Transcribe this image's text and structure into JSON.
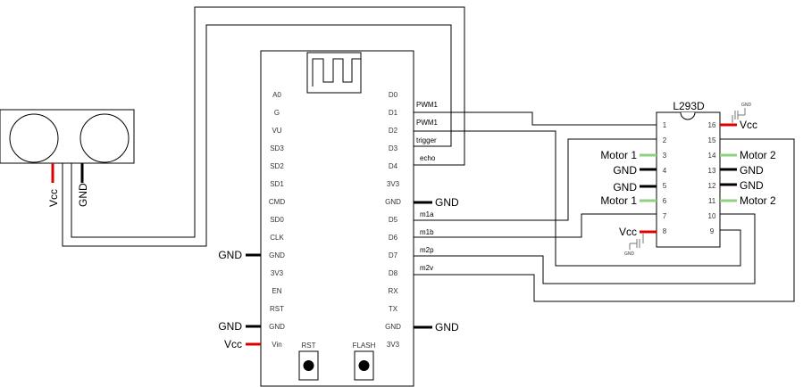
{
  "mcu": {
    "left_pins": [
      "A0",
      "G",
      "VU",
      "SD3",
      "SD2",
      "SD1",
      "CMD",
      "SD0",
      "CLK",
      "GND",
      "3V3",
      "EN",
      "RST",
      "GND",
      "Vin"
    ],
    "right_pins": [
      "D0",
      "D1",
      "D2",
      "D3",
      "D4",
      "3V3",
      "GND",
      "D5",
      "D6",
      "D7",
      "D8",
      "RX",
      "TX",
      "GND",
      "3V3"
    ],
    "buttons": {
      "rst": "RST",
      "flash": "FLASH"
    },
    "left_ext": {
      "gnd_clk": "GND",
      "gnd_lower": "GND",
      "vcc": "Vcc"
    },
    "right_ext": {
      "gnd_upper": "GND",
      "gnd_lower": "GND"
    }
  },
  "signals": {
    "d1": "PWM1",
    "d2": "PWM1",
    "d3": "trigger",
    "d4": "echo",
    "d5": "m1a",
    "d6": "m1b",
    "d7": "m2p",
    "d8": "m2v"
  },
  "sensor": {
    "vcc": "Vcc",
    "gnd": "GND"
  },
  "driver": {
    "title": "L293D",
    "left_nums": [
      "1",
      "2",
      "3",
      "4",
      "5",
      "6",
      "7",
      "8"
    ],
    "right_nums": [
      "16",
      "15",
      "14",
      "13",
      "12",
      "11",
      "10",
      "9"
    ],
    "left_labels": {
      "p3": "Motor 1",
      "p4": "GND",
      "p5": "GND",
      "p6": "Motor 1",
      "p8": "Vcc"
    },
    "right_labels": {
      "p16": "Vcc",
      "p14": "Motor 2",
      "p13": "GND",
      "p12": "GND",
      "p11": "Motor 2"
    },
    "gnd_small": "GND"
  },
  "colors": {
    "vcc": "#dd0000",
    "motor": "#90d080",
    "wire": "#000000"
  }
}
